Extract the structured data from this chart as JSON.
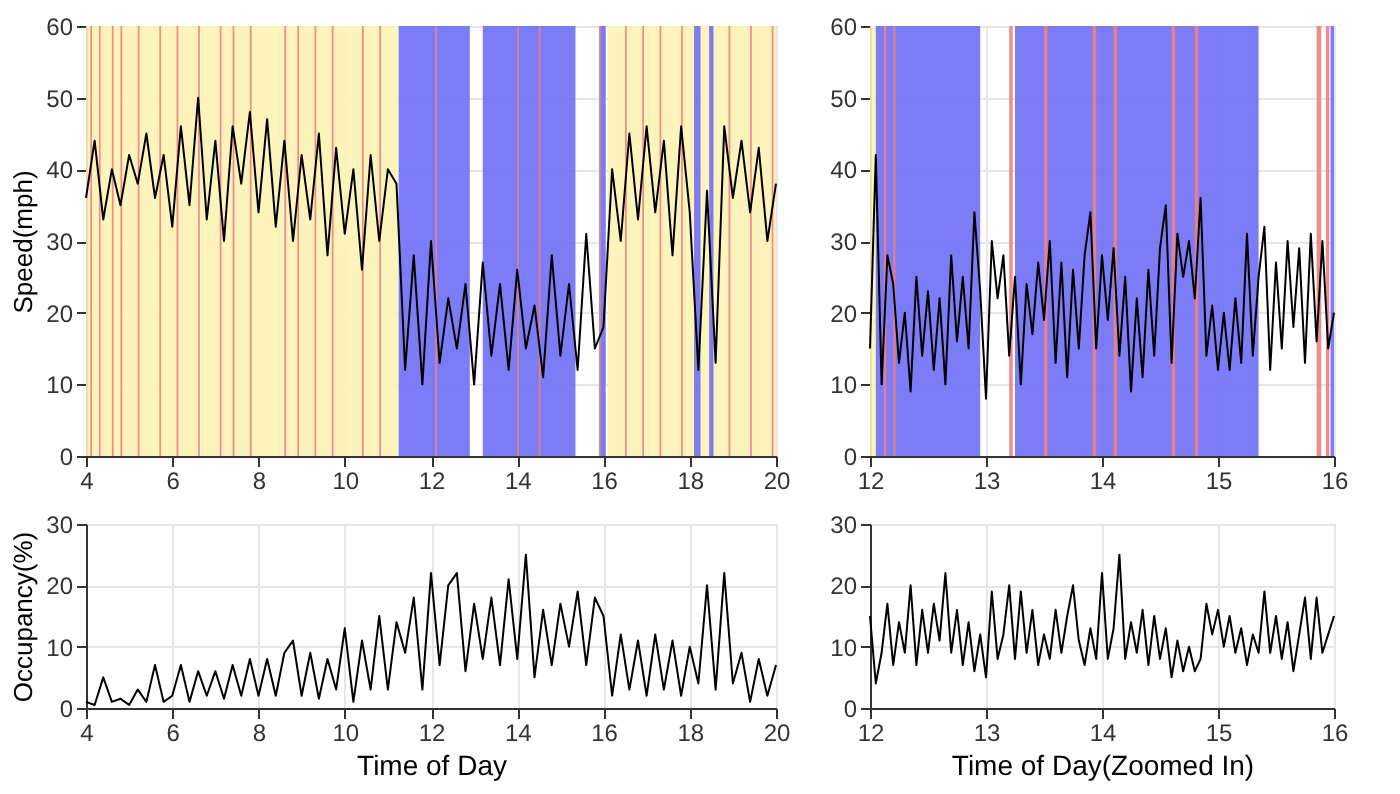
{
  "chart_data": [
    {
      "type": "line",
      "ylabel": "Speed(mph)",
      "xlim": [
        4,
        20
      ],
      "xticks": [
        4,
        6,
        8,
        10,
        12,
        14,
        16,
        18,
        20
      ],
      "ylim": [
        0,
        60
      ],
      "yticks": [
        0,
        10,
        20,
        30,
        40,
        50,
        60
      ],
      "grid": true,
      "series": [
        {
          "color": "#000000",
          "x": [
            4.0,
            4.2,
            4.4,
            4.6,
            4.8,
            5.0,
            5.2,
            5.4,
            5.6,
            5.8,
            6.0,
            6.2,
            6.4,
            6.6,
            6.8,
            7.0,
            7.2,
            7.4,
            7.6,
            7.8,
            8.0,
            8.2,
            8.4,
            8.6,
            8.8,
            9.0,
            9.2,
            9.4,
            9.6,
            9.8,
            10.0,
            10.2,
            10.4,
            10.6,
            10.8,
            11.0,
            11.2,
            11.4,
            11.6,
            11.8,
            12.0,
            12.2,
            12.4,
            12.6,
            12.8,
            13.0,
            13.2,
            13.4,
            13.6,
            13.8,
            14.0,
            14.2,
            14.4,
            14.6,
            14.8,
            15.0,
            15.2,
            15.4,
            15.6,
            15.8,
            16.0,
            16.2,
            16.4,
            16.6,
            16.8,
            17.0,
            17.2,
            17.4,
            17.6,
            17.8,
            18.0,
            18.2,
            18.4,
            18.6,
            18.8,
            19.0,
            19.2,
            19.4,
            19.6,
            19.8,
            20.0
          ],
          "values": [
            36,
            44,
            33,
            40,
            35,
            42,
            38,
            45,
            36,
            42,
            32,
            46,
            35,
            50,
            33,
            44,
            30,
            46,
            38,
            48,
            34,
            47,
            32,
            44,
            30,
            42,
            33,
            45,
            28,
            43,
            31,
            40,
            26,
            42,
            30,
            40,
            38,
            12,
            28,
            10,
            30,
            13,
            22,
            15,
            24,
            10,
            27,
            14,
            24,
            12,
            26,
            15,
            21,
            11,
            28,
            14,
            24,
            12,
            31,
            15,
            18,
            40,
            30,
            45,
            33,
            46,
            34,
            44,
            28,
            46,
            34,
            12,
            37,
            13,
            46,
            36,
            44,
            34,
            43,
            30,
            38
          ]
        }
      ],
      "bands": [
        {
          "axis": "x",
          "from": 4.0,
          "to": 11.25,
          "color": "#fdf3b4"
        },
        {
          "axis": "x",
          "from": 16.1,
          "to": 20.0,
          "color": "#fdf3b4"
        },
        {
          "axis": "x",
          "from": 11.25,
          "to": 12.9,
          "color": "#6e6ef5"
        },
        {
          "axis": "x",
          "from": 13.2,
          "to": 15.35,
          "color": "#6e6ef5"
        },
        {
          "axis": "x",
          "from": 15.9,
          "to": 16.05,
          "color": "#6e6ef5"
        },
        {
          "axis": "x",
          "from": 18.1,
          "to": 18.25,
          "color": "#6e6ef5"
        },
        {
          "axis": "x",
          "from": 18.45,
          "to": 18.55,
          "color": "#6e6ef5"
        },
        {
          "axis": "x",
          "from": 4.1,
          "to": 4.14,
          "color": "#f08080"
        },
        {
          "axis": "x",
          "from": 4.3,
          "to": 4.34,
          "color": "#f08080"
        },
        {
          "axis": "x",
          "from": 4.6,
          "to": 4.64,
          "color": "#f08080"
        },
        {
          "axis": "x",
          "from": 4.8,
          "to": 4.84,
          "color": "#f08080"
        },
        {
          "axis": "x",
          "from": 5.2,
          "to": 5.24,
          "color": "#f08080"
        },
        {
          "axis": "x",
          "from": 5.7,
          "to": 5.74,
          "color": "#f08080"
        },
        {
          "axis": "x",
          "from": 6.1,
          "to": 6.14,
          "color": "#f08080"
        },
        {
          "axis": "x",
          "from": 6.6,
          "to": 6.64,
          "color": "#f08080"
        },
        {
          "axis": "x",
          "from": 7.1,
          "to": 7.14,
          "color": "#f08080"
        },
        {
          "axis": "x",
          "from": 7.4,
          "to": 7.44,
          "color": "#f08080"
        },
        {
          "axis": "x",
          "from": 7.8,
          "to": 7.84,
          "color": "#f08080"
        },
        {
          "axis": "x",
          "from": 8.6,
          "to": 8.64,
          "color": "#f08080"
        },
        {
          "axis": "x",
          "from": 8.9,
          "to": 8.94,
          "color": "#f08080"
        },
        {
          "axis": "x",
          "from": 9.3,
          "to": 9.34,
          "color": "#f08080"
        },
        {
          "axis": "x",
          "from": 9.7,
          "to": 9.74,
          "color": "#f08080"
        },
        {
          "axis": "x",
          "from": 10.4,
          "to": 10.44,
          "color": "#f08080"
        },
        {
          "axis": "x",
          "from": 10.8,
          "to": 10.84,
          "color": "#f08080"
        },
        {
          "axis": "x",
          "from": 12.1,
          "to": 12.14,
          "color": "#f08080"
        },
        {
          "axis": "x",
          "from": 14.0,
          "to": 14.04,
          "color": "#f08080"
        },
        {
          "axis": "x",
          "from": 14.5,
          "to": 14.54,
          "color": "#f08080"
        },
        {
          "axis": "x",
          "from": 15.9,
          "to": 15.94,
          "color": "#f08080"
        },
        {
          "axis": "x",
          "from": 16.5,
          "to": 16.54,
          "color": "#f08080"
        },
        {
          "axis": "x",
          "from": 16.9,
          "to": 16.94,
          "color": "#f08080"
        },
        {
          "axis": "x",
          "from": 17.3,
          "to": 17.34,
          "color": "#f08080"
        },
        {
          "axis": "x",
          "from": 17.8,
          "to": 17.84,
          "color": "#f08080"
        },
        {
          "axis": "x",
          "from": 18.9,
          "to": 18.94,
          "color": "#f08080"
        },
        {
          "axis": "x",
          "from": 19.4,
          "to": 19.44,
          "color": "#f08080"
        },
        {
          "axis": "x",
          "from": 19.9,
          "to": 19.94,
          "color": "#f08080"
        }
      ]
    },
    {
      "type": "line",
      "xlim": [
        12,
        16
      ],
      "xticks": [
        12,
        13,
        14,
        15,
        16
      ],
      "ylim": [
        0,
        60
      ],
      "yticks": [
        0,
        10,
        20,
        30,
        40,
        50,
        60
      ],
      "grid": true,
      "series": [
        {
          "color": "#000000",
          "x": [
            12.0,
            12.05,
            12.1,
            12.15,
            12.2,
            12.25,
            12.3,
            12.35,
            12.4,
            12.45,
            12.5,
            12.55,
            12.6,
            12.65,
            12.7,
            12.75,
            12.8,
            12.85,
            12.9,
            12.95,
            13.0,
            13.05,
            13.1,
            13.15,
            13.2,
            13.25,
            13.3,
            13.35,
            13.4,
            13.45,
            13.5,
            13.55,
            13.6,
            13.65,
            13.7,
            13.75,
            13.8,
            13.85,
            13.9,
            13.95,
            14.0,
            14.05,
            14.1,
            14.15,
            14.2,
            14.25,
            14.3,
            14.35,
            14.4,
            14.45,
            14.5,
            14.55,
            14.6,
            14.65,
            14.7,
            14.75,
            14.8,
            14.85,
            14.9,
            14.95,
            15.0,
            15.05,
            15.1,
            15.15,
            15.2,
            15.25,
            15.3,
            15.35,
            15.4,
            15.45,
            15.5,
            15.55,
            15.6,
            15.65,
            15.7,
            15.75,
            15.8,
            15.85,
            15.9,
            15.95,
            16.0
          ],
          "values": [
            15,
            42,
            10,
            28,
            24,
            13,
            20,
            9,
            25,
            14,
            23,
            12,
            22,
            10,
            28,
            16,
            25,
            15,
            34,
            23,
            8,
            30,
            22,
            28,
            14,
            25,
            10,
            24,
            17,
            27,
            19,
            30,
            13,
            27,
            11,
            26,
            15,
            28,
            34,
            15,
            28,
            19,
            29,
            14,
            25,
            9,
            22,
            11,
            26,
            14,
            29,
            35,
            13,
            31,
            25,
            30,
            22,
            36,
            14,
            21,
            12,
            20,
            12,
            22,
            13,
            31,
            14,
            25,
            32,
            12,
            27,
            15,
            30,
            18,
            29,
            13,
            31,
            16,
            30,
            15,
            20
          ]
        }
      ],
      "bands": [
        {
          "axis": "x",
          "from": 12.0,
          "to": 12.05,
          "color": "#fdf3b4"
        },
        {
          "axis": "x",
          "from": 12.05,
          "to": 12.95,
          "color": "#6e6ef5"
        },
        {
          "axis": "x",
          "from": 13.25,
          "to": 15.35,
          "color": "#6e6ef5"
        },
        {
          "axis": "x",
          "from": 15.97,
          "to": 16.0,
          "color": "#6e6ef5"
        },
        {
          "axis": "x",
          "from": 12.12,
          "to": 12.14,
          "color": "#f08080"
        },
        {
          "axis": "x",
          "from": 12.2,
          "to": 12.22,
          "color": "#f08080"
        },
        {
          "axis": "x",
          "from": 13.2,
          "to": 13.23,
          "color": "#f08080"
        },
        {
          "axis": "x",
          "from": 13.5,
          "to": 13.53,
          "color": "#f08080"
        },
        {
          "axis": "x",
          "from": 13.92,
          "to": 13.95,
          "color": "#f08080"
        },
        {
          "axis": "x",
          "from": 14.1,
          "to": 14.13,
          "color": "#f08080"
        },
        {
          "axis": "x",
          "from": 14.6,
          "to": 14.63,
          "color": "#f08080"
        },
        {
          "axis": "x",
          "from": 14.8,
          "to": 14.83,
          "color": "#f08080"
        },
        {
          "axis": "x",
          "from": 15.85,
          "to": 15.89,
          "color": "#f08080"
        },
        {
          "axis": "x",
          "from": 15.93,
          "to": 15.96,
          "color": "#f08080"
        }
      ]
    },
    {
      "type": "line",
      "ylabel": "Occupancy(%)",
      "xlabel": "Time of Day",
      "xlim": [
        4,
        20
      ],
      "xticks": [
        4,
        6,
        8,
        10,
        12,
        14,
        16,
        18,
        20
      ],
      "ylim": [
        0,
        30
      ],
      "yticks": [
        0,
        10,
        20,
        30
      ],
      "grid": true,
      "series": [
        {
          "color": "#000000",
          "x": [
            4.0,
            4.2,
            4.4,
            4.6,
            4.8,
            5.0,
            5.2,
            5.4,
            5.6,
            5.8,
            6.0,
            6.2,
            6.4,
            6.6,
            6.8,
            7.0,
            7.2,
            7.4,
            7.6,
            7.8,
            8.0,
            8.2,
            8.4,
            8.6,
            8.8,
            9.0,
            9.2,
            9.4,
            9.6,
            9.8,
            10.0,
            10.2,
            10.4,
            10.6,
            10.8,
            11.0,
            11.2,
            11.4,
            11.6,
            11.8,
            12.0,
            12.2,
            12.4,
            12.6,
            12.8,
            13.0,
            13.2,
            13.4,
            13.6,
            13.8,
            14.0,
            14.2,
            14.4,
            14.6,
            14.8,
            15.0,
            15.2,
            15.4,
            15.6,
            15.8,
            16.0,
            16.2,
            16.4,
            16.6,
            16.8,
            17.0,
            17.2,
            17.4,
            17.6,
            17.8,
            18.0,
            18.2,
            18.4,
            18.6,
            18.8,
            19.0,
            19.2,
            19.4,
            19.6,
            19.8,
            20.0
          ],
          "values": [
            1,
            0.5,
            5,
            1,
            1.5,
            0.5,
            3,
            1,
            7,
            1,
            2,
            7,
            1,
            6,
            2,
            6,
            1.5,
            7,
            2,
            8,
            2,
            8,
            2,
            9,
            11,
            2,
            9,
            1.5,
            8,
            3,
            13,
            1,
            11,
            3,
            15,
            3,
            14,
            9,
            18,
            3,
            22,
            7,
            20,
            22,
            6,
            17,
            8,
            18,
            7,
            21,
            8,
            25,
            5,
            16,
            7,
            17,
            10,
            19,
            7,
            18,
            15,
            2,
            12,
            3,
            11,
            2,
            12,
            3,
            11,
            2,
            10,
            4,
            20,
            3,
            22,
            4,
            9,
            1,
            8,
            2,
            7
          ]
        }
      ]
    },
    {
      "type": "line",
      "xlabel": "Time of Day(Zoomed In)",
      "xlim": [
        12,
        16
      ],
      "xticks": [
        12,
        13,
        14,
        15,
        16
      ],
      "ylim": [
        0,
        30
      ],
      "yticks": [
        0,
        10,
        20,
        30
      ],
      "grid": true,
      "series": [
        {
          "color": "#000000",
          "x": [
            12.0,
            12.05,
            12.1,
            12.15,
            12.2,
            12.25,
            12.3,
            12.35,
            12.4,
            12.45,
            12.5,
            12.55,
            12.6,
            12.65,
            12.7,
            12.75,
            12.8,
            12.85,
            12.9,
            12.95,
            13.0,
            13.05,
            13.1,
            13.15,
            13.2,
            13.25,
            13.3,
            13.35,
            13.4,
            13.45,
            13.5,
            13.55,
            13.6,
            13.65,
            13.7,
            13.75,
            13.8,
            13.85,
            13.9,
            13.95,
            14.0,
            14.05,
            14.1,
            14.15,
            14.2,
            14.25,
            14.3,
            14.35,
            14.4,
            14.45,
            14.5,
            14.55,
            14.6,
            14.65,
            14.7,
            14.75,
            14.8,
            14.85,
            14.9,
            14.95,
            15.0,
            15.05,
            15.1,
            15.15,
            15.2,
            15.25,
            15.3,
            15.35,
            15.4,
            15.45,
            15.5,
            15.55,
            15.6,
            15.65,
            15.7,
            15.75,
            15.8,
            15.85,
            15.9,
            15.95,
            16.0
          ],
          "values": [
            15,
            4,
            9,
            17,
            7,
            14,
            9,
            20,
            7,
            16,
            9,
            17,
            11,
            22,
            9,
            16,
            7,
            14,
            6,
            12,
            5,
            19,
            8,
            12,
            20,
            8,
            19,
            9,
            16,
            7,
            12,
            8,
            16,
            9,
            15,
            20,
            11,
            7,
            13,
            8,
            22,
            8,
            13,
            25,
            8,
            14,
            9,
            16,
            7,
            15,
            8,
            13,
            5,
            11,
            6,
            10,
            6,
            8,
            17,
            12,
            16,
            10,
            15,
            9,
            13,
            7,
            12,
            9,
            19,
            9,
            15,
            8,
            14,
            6,
            12,
            18,
            8,
            18,
            9,
            12,
            15
          ]
        }
      ]
    }
  ]
}
